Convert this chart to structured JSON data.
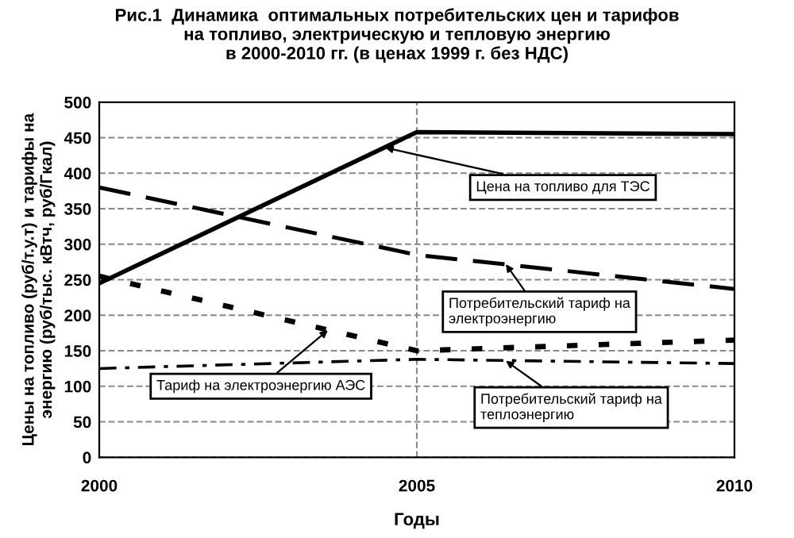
{
  "chart_data": {
    "type": "line",
    "title": "Рис.1  Динамика  оптимальных потребительских цен и тарифов\nна топливо, электрическую и тепловую энергию\nв 2000-2010 гг. (в ценах 1999 г. без НДС)",
    "xlabel": "Годы",
    "ylabel": "Цены на топливо (руб/т.у.т) и тарифы на\nэнергию (руб/тыс. кВтч, руб/Гкал)",
    "x": [
      2000,
      2005,
      2010
    ],
    "series": [
      {
        "color": "#000000",
        "line_style": "solid",
        "values": [
          245,
          458,
          455
        ]
      },
      {
        "color": "#000000",
        "line_style": "dashed",
        "values": [
          380,
          285,
          237
        ]
      },
      {
        "color": "#000000",
        "line_style": "dotted",
        "values": [
          255,
          150,
          165
        ]
      },
      {
        "color": "#000000",
        "line_style": "dashed",
        "values": [
          125,
          138,
          132
        ]
      }
    ],
    "xlim": [
      2000,
      2010
    ],
    "xticks": [
      2000,
      2005,
      2010
    ],
    "ylim": [
      0,
      500
    ],
    "yticks": [
      0,
      50,
      100,
      150,
      200,
      250,
      300,
      350,
      400,
      450,
      500
    ],
    "grid": true,
    "marker": "none",
    "annotations": [
      {
        "text": "Цена на топливо для ТЭС",
        "x": 2004.5,
        "y": 436
      },
      {
        "text": "Потребительский тариф на\nэлектроэнергию",
        "x": 2006.4,
        "y": 272
      },
      {
        "text": "Тариф на электроэнергию АЭС",
        "x": 2003.6,
        "y": 179
      },
      {
        "text": "Потребительский тариф на\nтеплоэнергию",
        "x": 2006.4,
        "y": 136
      }
    ]
  }
}
